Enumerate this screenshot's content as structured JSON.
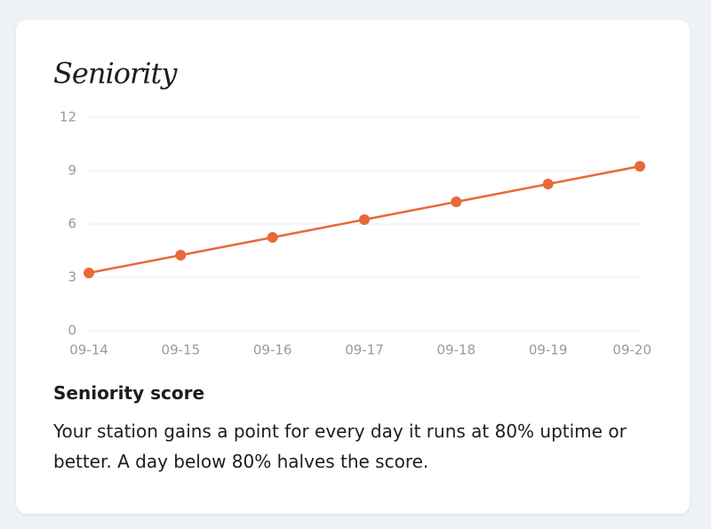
{
  "chart_data": {
    "type": "line",
    "title": "Seniority",
    "categories": [
      "09-14",
      "09-15",
      "09-16",
      "09-17",
      "09-18",
      "09-19",
      "09-20"
    ],
    "values": [
      3.25,
      4.25,
      5.25,
      6.25,
      7.25,
      8.25,
      9.25
    ],
    "color": "#e8693a",
    "ylim": [
      0,
      12
    ],
    "yticks": [
      0,
      3,
      6,
      9,
      12
    ],
    "grid": true
  },
  "card": {
    "heading": "Seniority score",
    "body": "Your station gains a point for every day it runs at 80% uptime or better. A day below 80% halves the score."
  }
}
